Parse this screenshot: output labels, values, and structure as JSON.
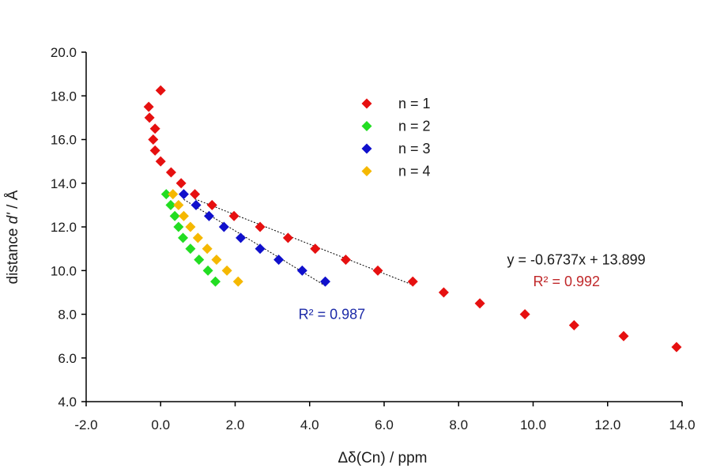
{
  "chart_data": {
    "type": "scatter",
    "title": "",
    "xlabel": "Δδ(Cn) / ppm",
    "ylabel": "distance d' / Å",
    "ylabel_parts": {
      "pre": "distance ",
      "italic": "d'",
      "post": " / Å"
    },
    "xlim": [
      -2.0,
      14.0
    ],
    "ylim": [
      4.0,
      20.0
    ],
    "x_ticks": [
      "-2.0",
      "0.0",
      "2.0",
      "4.0",
      "6.0",
      "8.0",
      "10.0",
      "12.0",
      "14.0"
    ],
    "y_ticks": [
      "4.0",
      "6.0",
      "8.0",
      "10.0",
      "12.0",
      "14.0",
      "16.0",
      "18.0",
      "20.0"
    ],
    "grid": false,
    "legend_position": "top-center",
    "series": [
      {
        "name": "n = 1",
        "color": "#e61010",
        "points": [
          [
            0.0,
            18.25
          ],
          [
            -0.32,
            17.5
          ],
          [
            -0.3,
            17.0
          ],
          [
            -0.15,
            16.5
          ],
          [
            -0.2,
            16.0
          ],
          [
            -0.15,
            15.5
          ],
          [
            0.0,
            15.0
          ],
          [
            0.28,
            14.5
          ],
          [
            0.55,
            14.0
          ],
          [
            0.92,
            13.5
          ],
          [
            1.38,
            13.0
          ],
          [
            1.97,
            12.5
          ],
          [
            2.67,
            12.0
          ],
          [
            3.42,
            11.5
          ],
          [
            4.15,
            11.0
          ],
          [
            4.97,
            10.5
          ],
          [
            5.83,
            10.0
          ],
          [
            6.77,
            9.5
          ],
          [
            7.6,
            9.0
          ],
          [
            8.57,
            8.5
          ],
          [
            9.78,
            8.0
          ],
          [
            11.1,
            7.5
          ],
          [
            12.43,
            7.0
          ],
          [
            13.85,
            6.5
          ]
        ]
      },
      {
        "name": "n = 2",
        "color": "#22dd22",
        "points": [
          [
            0.15,
            13.5
          ],
          [
            0.27,
            13.0
          ],
          [
            0.38,
            12.5
          ],
          [
            0.48,
            12.0
          ],
          [
            0.6,
            11.5
          ],
          [
            0.8,
            11.0
          ],
          [
            1.03,
            10.5
          ],
          [
            1.27,
            10.0
          ],
          [
            1.47,
            9.5
          ]
        ]
      },
      {
        "name": "n = 3",
        "color": "#1010cc",
        "points": [
          [
            0.62,
            13.5
          ],
          [
            0.95,
            13.0
          ],
          [
            1.3,
            12.5
          ],
          [
            1.7,
            12.0
          ],
          [
            2.15,
            11.5
          ],
          [
            2.67,
            11.0
          ],
          [
            3.17,
            10.5
          ],
          [
            3.8,
            10.0
          ],
          [
            4.42,
            9.5
          ]
        ]
      },
      {
        "name": "n = 4",
        "color": "#f5b800",
        "points": [
          [
            0.33,
            13.5
          ],
          [
            0.48,
            13.0
          ],
          [
            0.62,
            12.5
          ],
          [
            0.8,
            12.0
          ],
          [
            1.0,
            11.5
          ],
          [
            1.25,
            11.0
          ],
          [
            1.5,
            10.5
          ],
          [
            1.78,
            10.0
          ],
          [
            2.08,
            9.5
          ]
        ]
      }
    ],
    "trendlines": [
      {
        "series": "n = 1",
        "x_range": [
          0.92,
          6.77
        ],
        "style": "dotted",
        "color": "#000000"
      },
      {
        "series": "n = 3",
        "x_range": [
          0.62,
          4.42
        ],
        "style": "dotted",
        "color": "#000000"
      }
    ],
    "annotations": [
      {
        "text": "y = -0.6737x + 13.899",
        "x": 9.3,
        "y": 10.5,
        "color": "#1a1a1a"
      },
      {
        "text": "R² = 0.992",
        "x": 10.0,
        "y": 9.5,
        "color": "#c0282a"
      },
      {
        "text": "R² = 0.987",
        "x": 3.7,
        "y": 8.0,
        "color": "#1c2aa8"
      }
    ]
  }
}
